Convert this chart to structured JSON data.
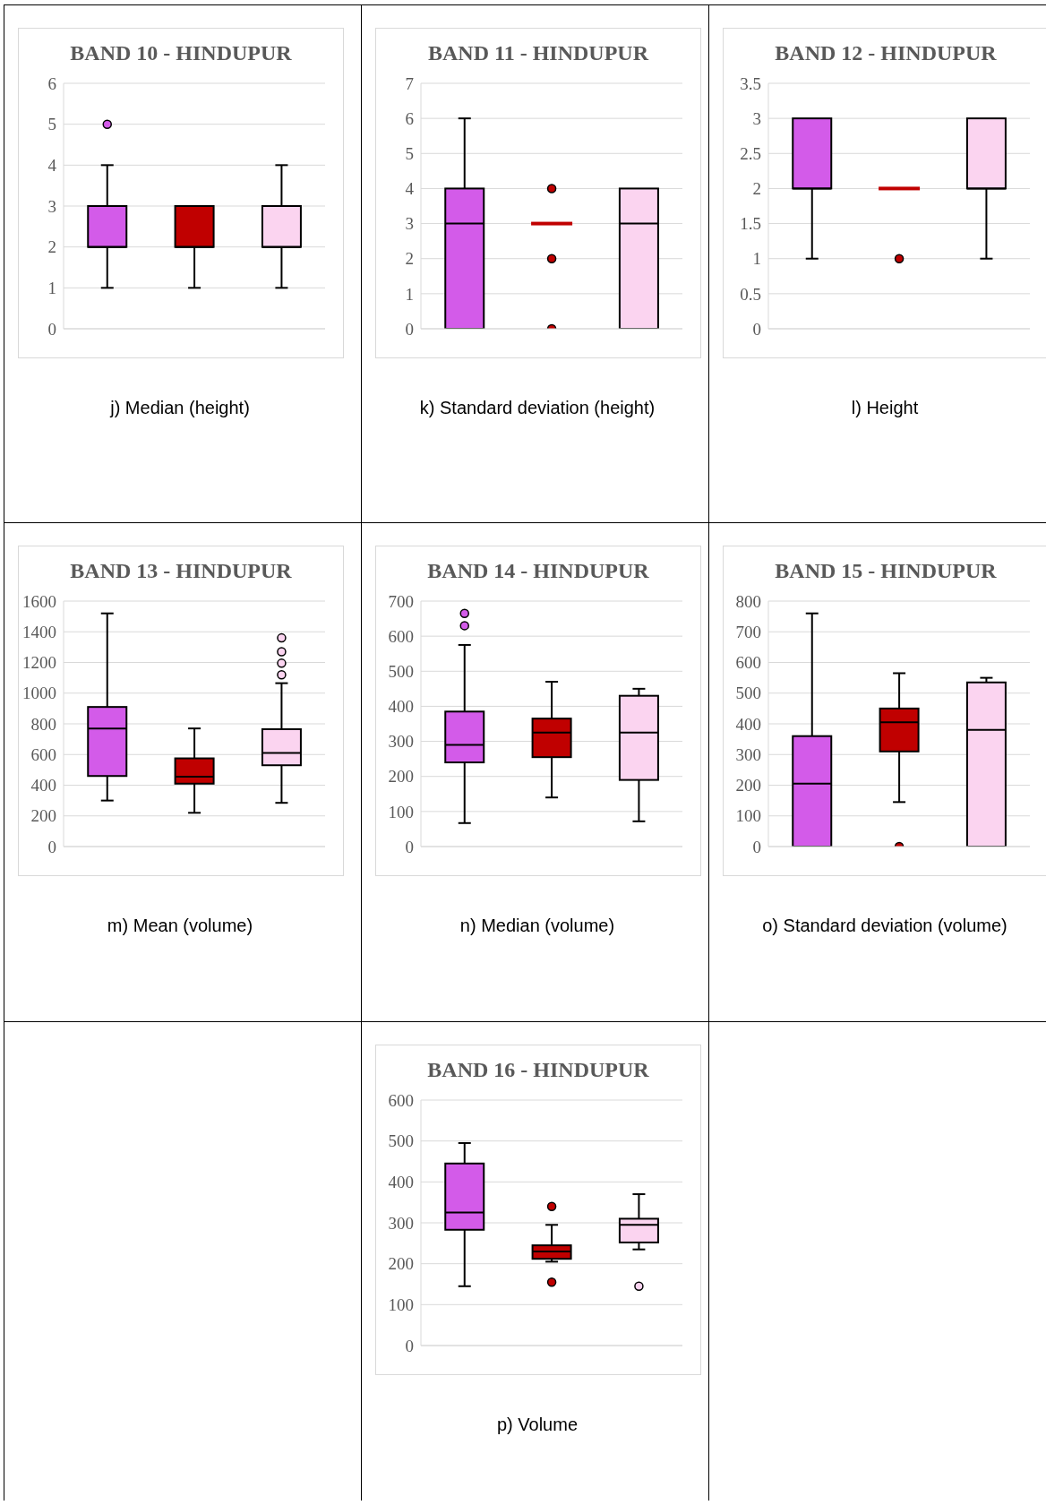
{
  "chart_data": [
    {
      "type": "box",
      "title": "BAND 10 - HINDUPUR",
      "categories": [
        null,
        null,
        null
      ],
      "colors": [
        "#d35be9",
        "#c00000",
        "#fbd4f0"
      ],
      "ylim": [
        0,
        6
      ],
      "yticks": [
        0,
        1,
        2,
        3,
        4,
        5,
        6
      ],
      "grid": "y",
      "tick_labels": "y",
      "annotations": [
        "j) Median (height)"
      ],
      "boxes": [
        {
          "low": 1,
          "q1": 2,
          "median": 2,
          "q3": 3,
          "high": 4,
          "outliers": [
            5
          ]
        },
        {
          "low": 1,
          "q1": 2,
          "median": 2,
          "q3": 3,
          "high": 3
        },
        {
          "low": 1,
          "q1": 2,
          "median": 2,
          "q3": 3,
          "high": 4
        }
      ]
    },
    {
      "type": "box",
      "title": "BAND 11 - HINDUPUR",
      "categories": [
        null,
        null,
        null
      ],
      "colors": [
        "#d35be9",
        "#c00000",
        "#fbd4f0"
      ],
      "ylim": [
        0,
        7
      ],
      "yticks": [
        0,
        1,
        2,
        3,
        4,
        5,
        6,
        7
      ],
      "grid": "y",
      "tick_labels": "y",
      "annotations": [
        "k) Standard deviation (height)"
      ],
      "boxes": [
        {
          "low": 0,
          "q1": 0,
          "median": 3,
          "q3": 4,
          "high": 6
        },
        {
          "low": 3,
          "q1": 3,
          "median": 3,
          "q3": 3,
          "high": 3,
          "outliers": [
            4,
            2,
            0
          ]
        },
        {
          "low": 0,
          "q1": 0,
          "median": 3,
          "q3": 4,
          "high": 4
        }
      ]
    },
    {
      "type": "box",
      "title": "BAND 12 - HINDUPUR",
      "categories": [
        null,
        null,
        null
      ],
      "colors": [
        "#d35be9",
        "#c00000",
        "#fbd4f0"
      ],
      "ylim": [
        0,
        3.5
      ],
      "yticks": [
        0,
        0.5,
        1,
        1.5,
        2,
        2.5,
        3,
        3.5
      ],
      "grid": "y",
      "tick_labels": "y",
      "annotations": [
        "l) Height"
      ],
      "boxes": [
        {
          "low": 1,
          "q1": 2,
          "median": 2,
          "q3": 3,
          "high": 3
        },
        {
          "low": 2,
          "q1": 2,
          "median": 2,
          "q3": 2,
          "high": 2,
          "outliers": [
            1
          ]
        },
        {
          "low": 1,
          "q1": 2,
          "median": 2,
          "q3": 3,
          "high": 3
        }
      ]
    },
    {
      "type": "box",
      "title": "BAND 13 - HINDUPUR",
      "categories": [
        null,
        null,
        null
      ],
      "colors": [
        "#d35be9",
        "#c00000",
        "#fbd4f0"
      ],
      "ylim": [
        0,
        1600
      ],
      "yticks": [
        0,
        200,
        400,
        600,
        800,
        1000,
        1200,
        1400,
        1600
      ],
      "grid": "y",
      "tick_labels": "y",
      "annotations": [
        "m) Mean (volume)"
      ],
      "boxes": [
        {
          "low": 300,
          "q1": 460,
          "median": 770,
          "q3": 910,
          "high": 1520
        },
        {
          "low": 220,
          "q1": 410,
          "median": 455,
          "q3": 575,
          "high": 770
        },
        {
          "low": 285,
          "q1": 530,
          "median": 610,
          "q3": 765,
          "high": 1065,
          "outliers": [
            1120,
            1195,
            1270,
            1360
          ]
        }
      ]
    },
    {
      "type": "box",
      "title": "BAND 14 - HINDUPUR",
      "categories": [
        null,
        null,
        null
      ],
      "colors": [
        "#d35be9",
        "#c00000",
        "#fbd4f0"
      ],
      "ylim": [
        0,
        700
      ],
      "yticks": [
        0,
        100,
        200,
        300,
        400,
        500,
        600,
        700
      ],
      "grid": "y",
      "tick_labels": "y",
      "annotations": [
        "n) Median (volume)"
      ],
      "boxes": [
        {
          "low": 67,
          "q1": 240,
          "median": 290,
          "q3": 385,
          "high": 575,
          "outliers": [
            630,
            665
          ]
        },
        {
          "low": 140,
          "q1": 255,
          "median": 325,
          "q3": 365,
          "high": 470
        },
        {
          "low": 72,
          "q1": 190,
          "median": 325,
          "q3": 430,
          "high": 450
        }
      ]
    },
    {
      "type": "box",
      "title": "BAND 15 - HINDUPUR",
      "categories": [
        null,
        null,
        null
      ],
      "colors": [
        "#d35be9",
        "#c00000",
        "#fbd4f0"
      ],
      "ylim": [
        0,
        800
      ],
      "yticks": [
        0,
        100,
        200,
        300,
        400,
        500,
        600,
        700,
        800
      ],
      "grid": "y",
      "tick_labels": "y",
      "annotations": [
        "o) Standard deviation (volume)"
      ],
      "boxes": [
        {
          "low": 0,
          "q1": 0,
          "median": 205,
          "q3": 360,
          "high": 760
        },
        {
          "low": 145,
          "q1": 310,
          "median": 405,
          "q3": 450,
          "high": 565,
          "outliers": [
            0
          ]
        },
        {
          "low": 0,
          "q1": 0,
          "median": 380,
          "q3": 535,
          "high": 550
        }
      ]
    },
    {
      "type": "box",
      "title": "BAND 16 - HINDUPUR",
      "categories": [
        null,
        null,
        null
      ],
      "colors": [
        "#d35be9",
        "#c00000",
        "#fbd4f0"
      ],
      "ylim": [
        0,
        600
      ],
      "yticks": [
        0,
        100,
        200,
        300,
        400,
        500,
        600
      ],
      "grid": "y",
      "tick_labels": "y",
      "annotations": [
        "p) Volume"
      ],
      "boxes": [
        {
          "low": 145,
          "q1": 283,
          "median": 325,
          "q3": 445,
          "high": 495
        },
        {
          "low": 205,
          "q1": 212,
          "median": 230,
          "q3": 245,
          "high": 295,
          "outliers": [
            340,
            155
          ]
        },
        {
          "low": 235,
          "q1": 252,
          "median": 295,
          "q3": 310,
          "high": 370,
          "outliers": [
            145
          ]
        }
      ]
    }
  ]
}
